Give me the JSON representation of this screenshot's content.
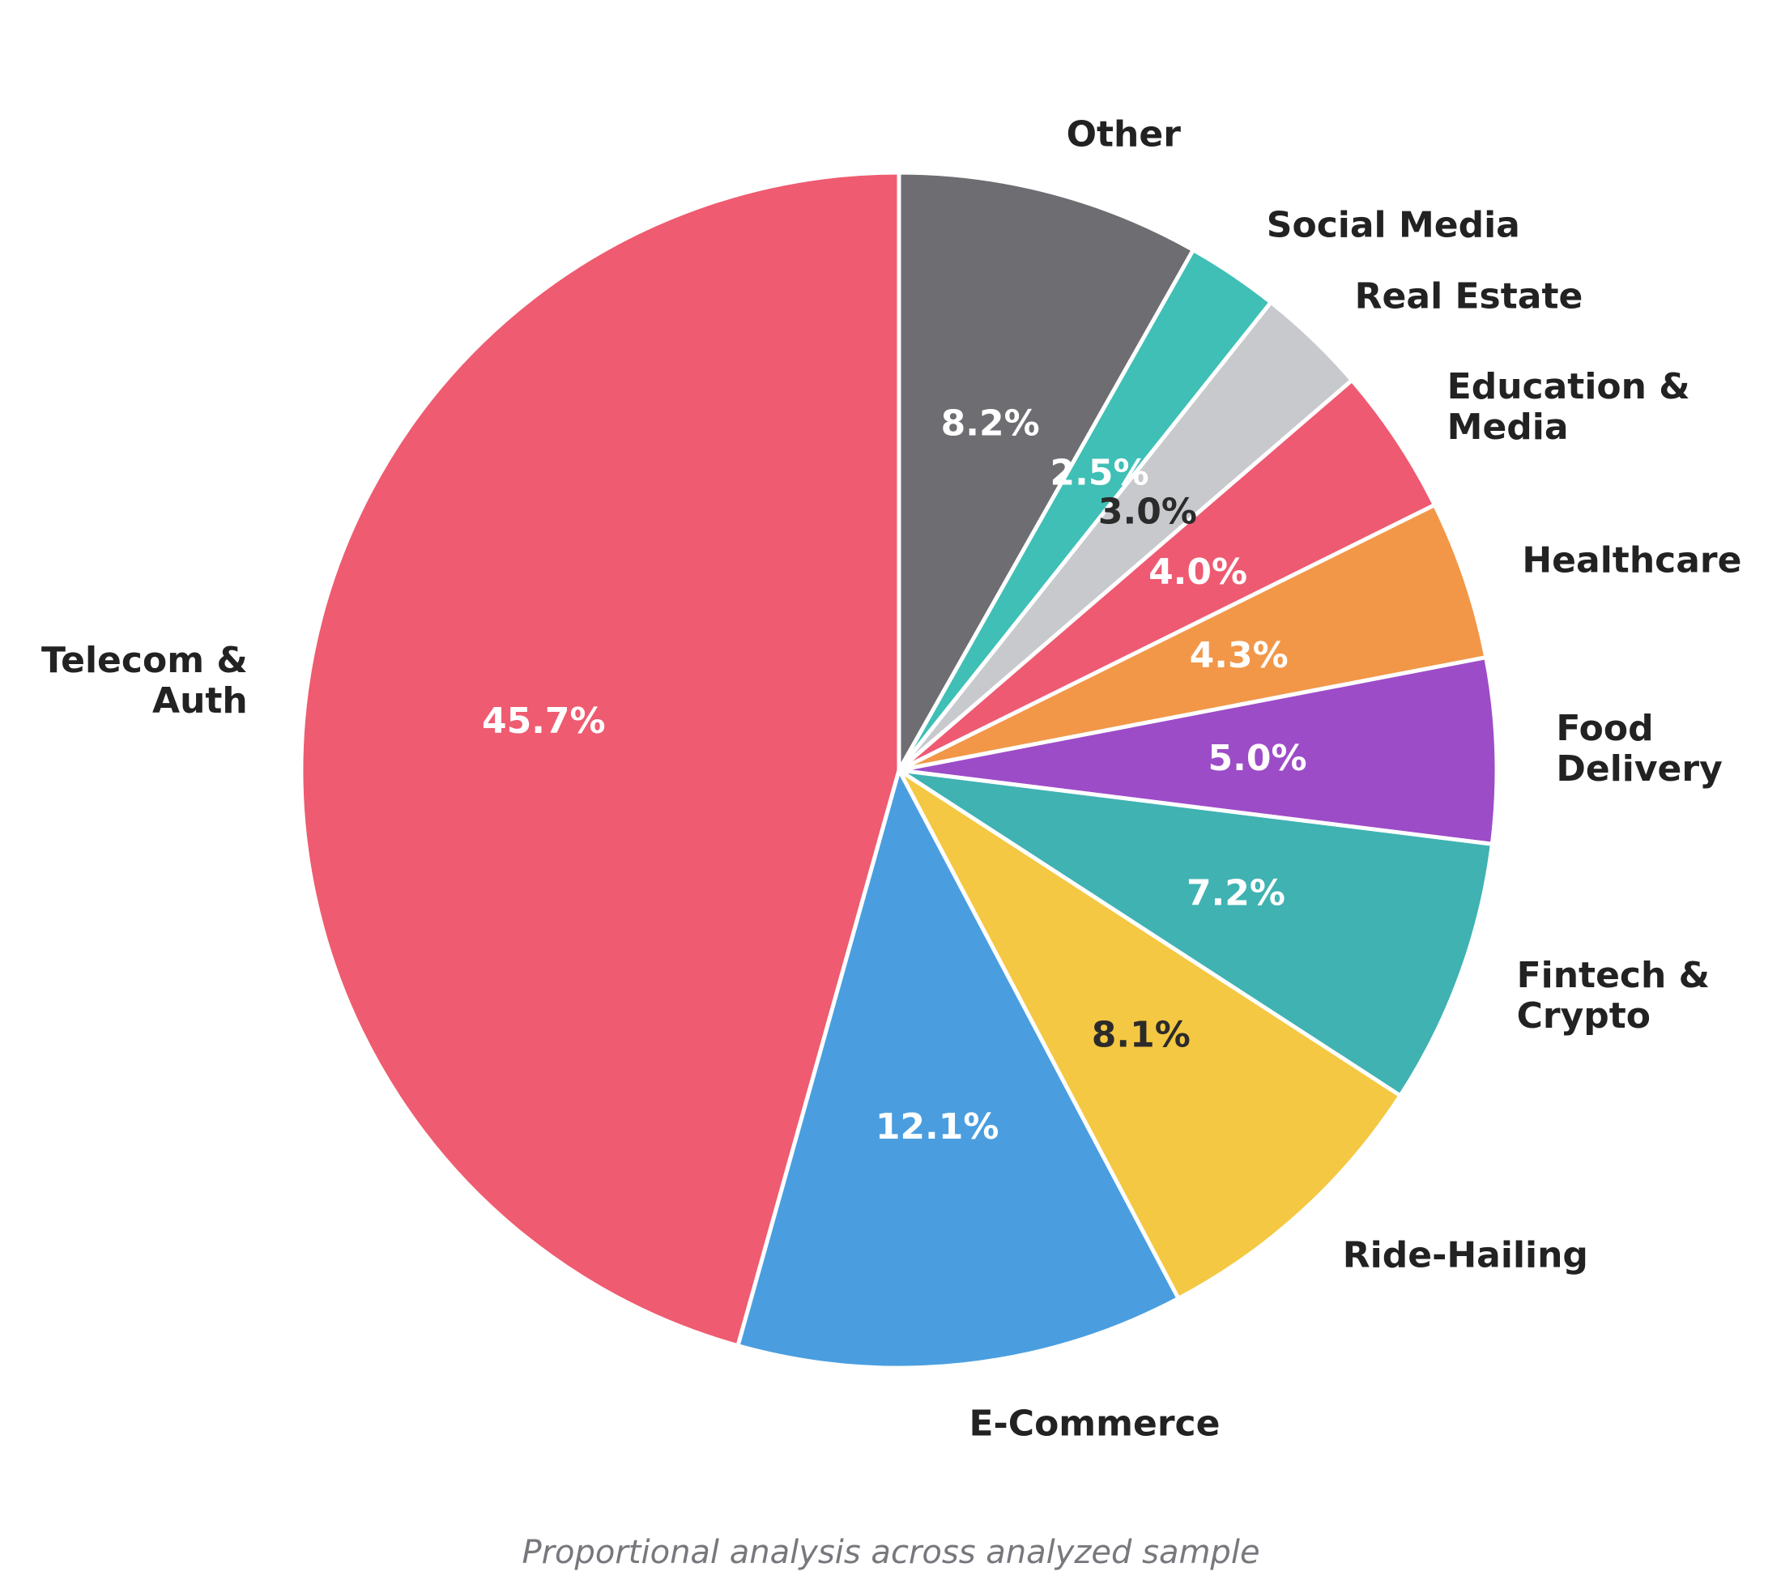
{
  "chart_data": {
    "type": "pie",
    "caption": "Proportional analysis across analyzed sample",
    "start_angle_deg": 90,
    "direction": "clockwise",
    "slices": [
      {
        "label": [
          "Other"
        ],
        "value": 8.2,
        "pct_text": "8.2%",
        "color": "#6e6d72",
        "pct_color": "#ffffff"
      },
      {
        "label": [
          "Social Media"
        ],
        "value": 2.5,
        "pct_text": "2.5%",
        "color": "#3fbfb5",
        "pct_color": "#ffffff"
      },
      {
        "label": [
          "Real Estate"
        ],
        "value": 3.0,
        "pct_text": "3.0%",
        "color": "#c8c9cd",
        "pct_color": "#2b2b2b"
      },
      {
        "label": [
          "Education &",
          "Media"
        ],
        "value": 4.0,
        "pct_text": "4.0%",
        "color": "#ee5a72",
        "pct_color": "#ffffff"
      },
      {
        "label": [
          "Healthcare"
        ],
        "value": 4.3,
        "pct_text": "4.3%",
        "color": "#f29748",
        "pct_color": "#ffffff"
      },
      {
        "label": [
          "Food",
          "Delivery"
        ],
        "value": 5.0,
        "pct_text": "5.0%",
        "color": "#9d4cc8",
        "pct_color": "#ffffff"
      },
      {
        "label": [
          "Fintech &",
          "Crypto"
        ],
        "value": 7.2,
        "pct_text": "7.2%",
        "color": "#40b2b2",
        "pct_color": "#ffffff"
      },
      {
        "label": [
          "Ride-Hailing"
        ],
        "value": 8.1,
        "pct_text": "8.1%",
        "color": "#f4c842",
        "pct_color": "#2b2b2b"
      },
      {
        "label": [
          "E-Commerce"
        ],
        "value": 12.1,
        "pct_text": "12.1%",
        "color": "#4a9edf",
        "pct_color": "#ffffff"
      },
      {
        "label": [
          "Telecom &",
          "Auth"
        ],
        "value": 45.7,
        "pct_text": "45.7%",
        "color": "#ef5b70",
        "pct_color": "#ffffff"
      }
    ]
  }
}
